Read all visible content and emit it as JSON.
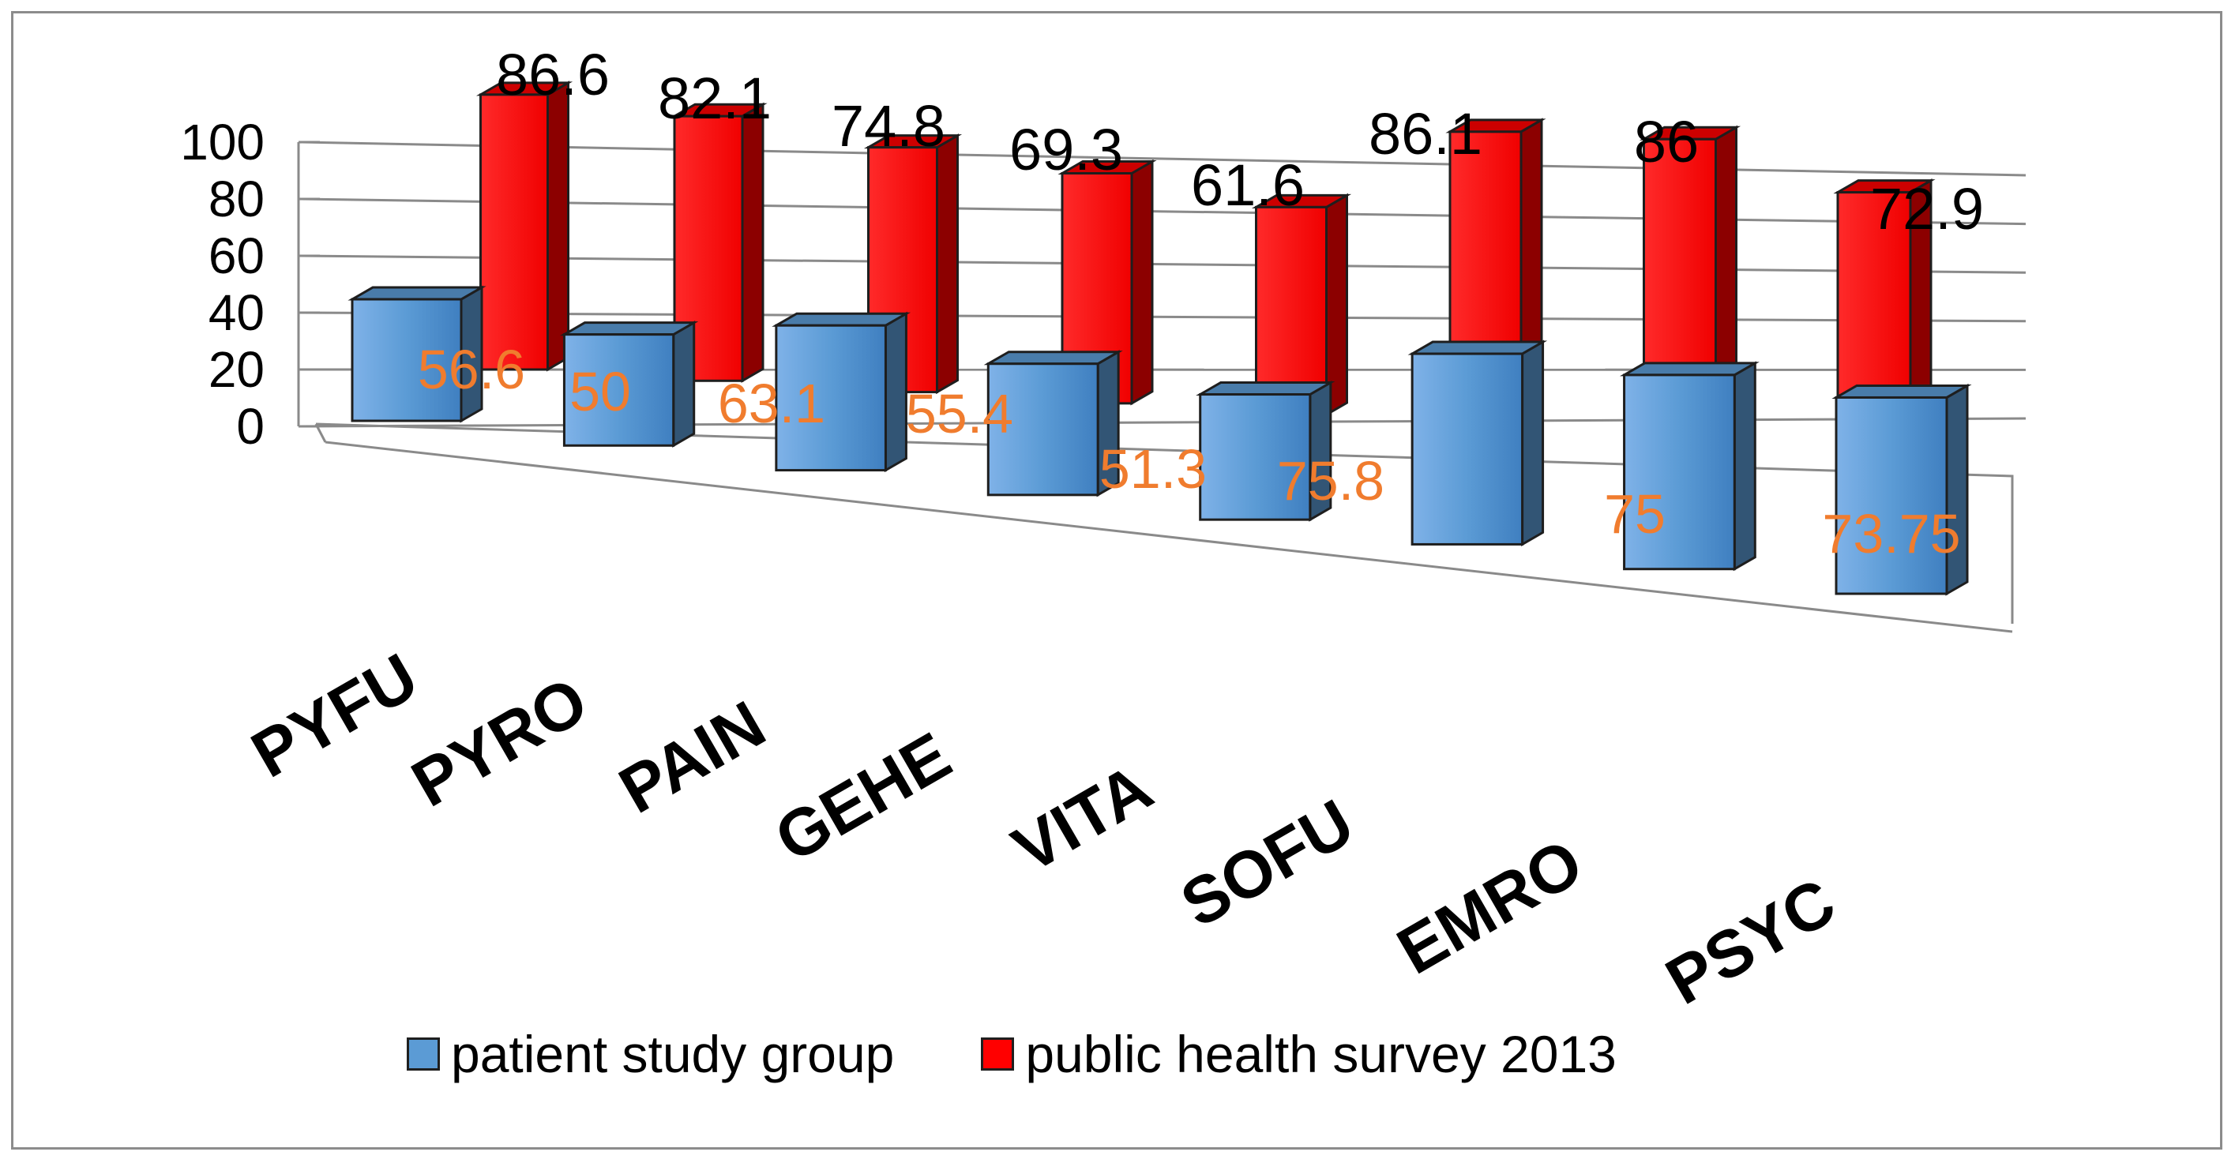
{
  "chart_data": {
    "type": "bar",
    "style": "3d-clustered-column",
    "categories": [
      "PYFU",
      "PYRO",
      "PAIN",
      "GEHE",
      "VITA",
      "SOFU",
      "EMRO",
      "PSYC"
    ],
    "series": [
      {
        "name": "patient study group",
        "color": "#5b9bd5",
        "values": [
          56.6,
          50,
          63.1,
          55.4,
          51.3,
          75.8,
          75,
          73.75
        ],
        "labels": [
          "56.6",
          "50",
          "63.1",
          "55.4",
          "51.3",
          "75.8",
          "75",
          "73.75"
        ]
      },
      {
        "name": "public health survey 2013",
        "color": "#ff0000",
        "values": [
          86.6,
          82.1,
          74.8,
          69.3,
          61.6,
          86.1,
          86,
          72.9
        ],
        "labels": [
          "86.6",
          "82.1",
          "74.8",
          "69.3",
          "61.6",
          "86.1",
          "86",
          "72.9"
        ]
      }
    ],
    "ylim": [
      0,
      100
    ],
    "yticks": [
      "0",
      "20",
      "40",
      "60",
      "80",
      "100"
    ],
    "legend_position": "bottom",
    "grid": true,
    "title": "",
    "xlabel": "",
    "ylabel": ""
  }
}
